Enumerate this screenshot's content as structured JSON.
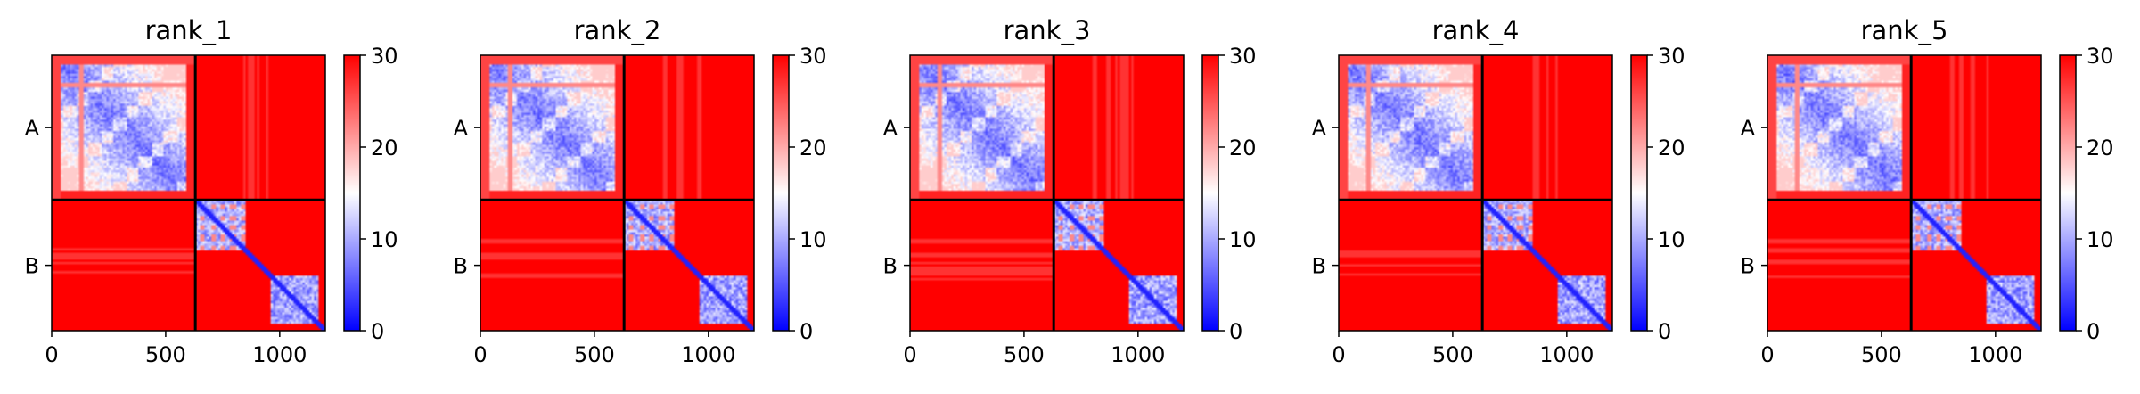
{
  "chart_data": {
    "type": "heatmap",
    "colormap": {
      "low": "#0000ff",
      "mid": "#ffffff",
      "high": "#ff0000"
    },
    "color_range": [
      0,
      30
    ],
    "colorbar_ticks": [
      "0",
      "10",
      "20",
      "30"
    ],
    "x_range": [
      0,
      1200
    ],
    "x_ticks": [
      0,
      500,
      1000
    ],
    "x_tick_labels": [
      "0",
      "500",
      "1000"
    ],
    "chains": [
      {
        "name": "A",
        "start": 0,
        "end": 630
      },
      {
        "name": "B",
        "start": 630,
        "end": 1200
      }
    ],
    "chain_boundary": 630,
    "panels": [
      {
        "title": "rank_1"
      },
      {
        "title": "rank_2"
      },
      {
        "title": "rank_3"
      },
      {
        "title": "rank_4"
      },
      {
        "title": "rank_5"
      }
    ]
  }
}
